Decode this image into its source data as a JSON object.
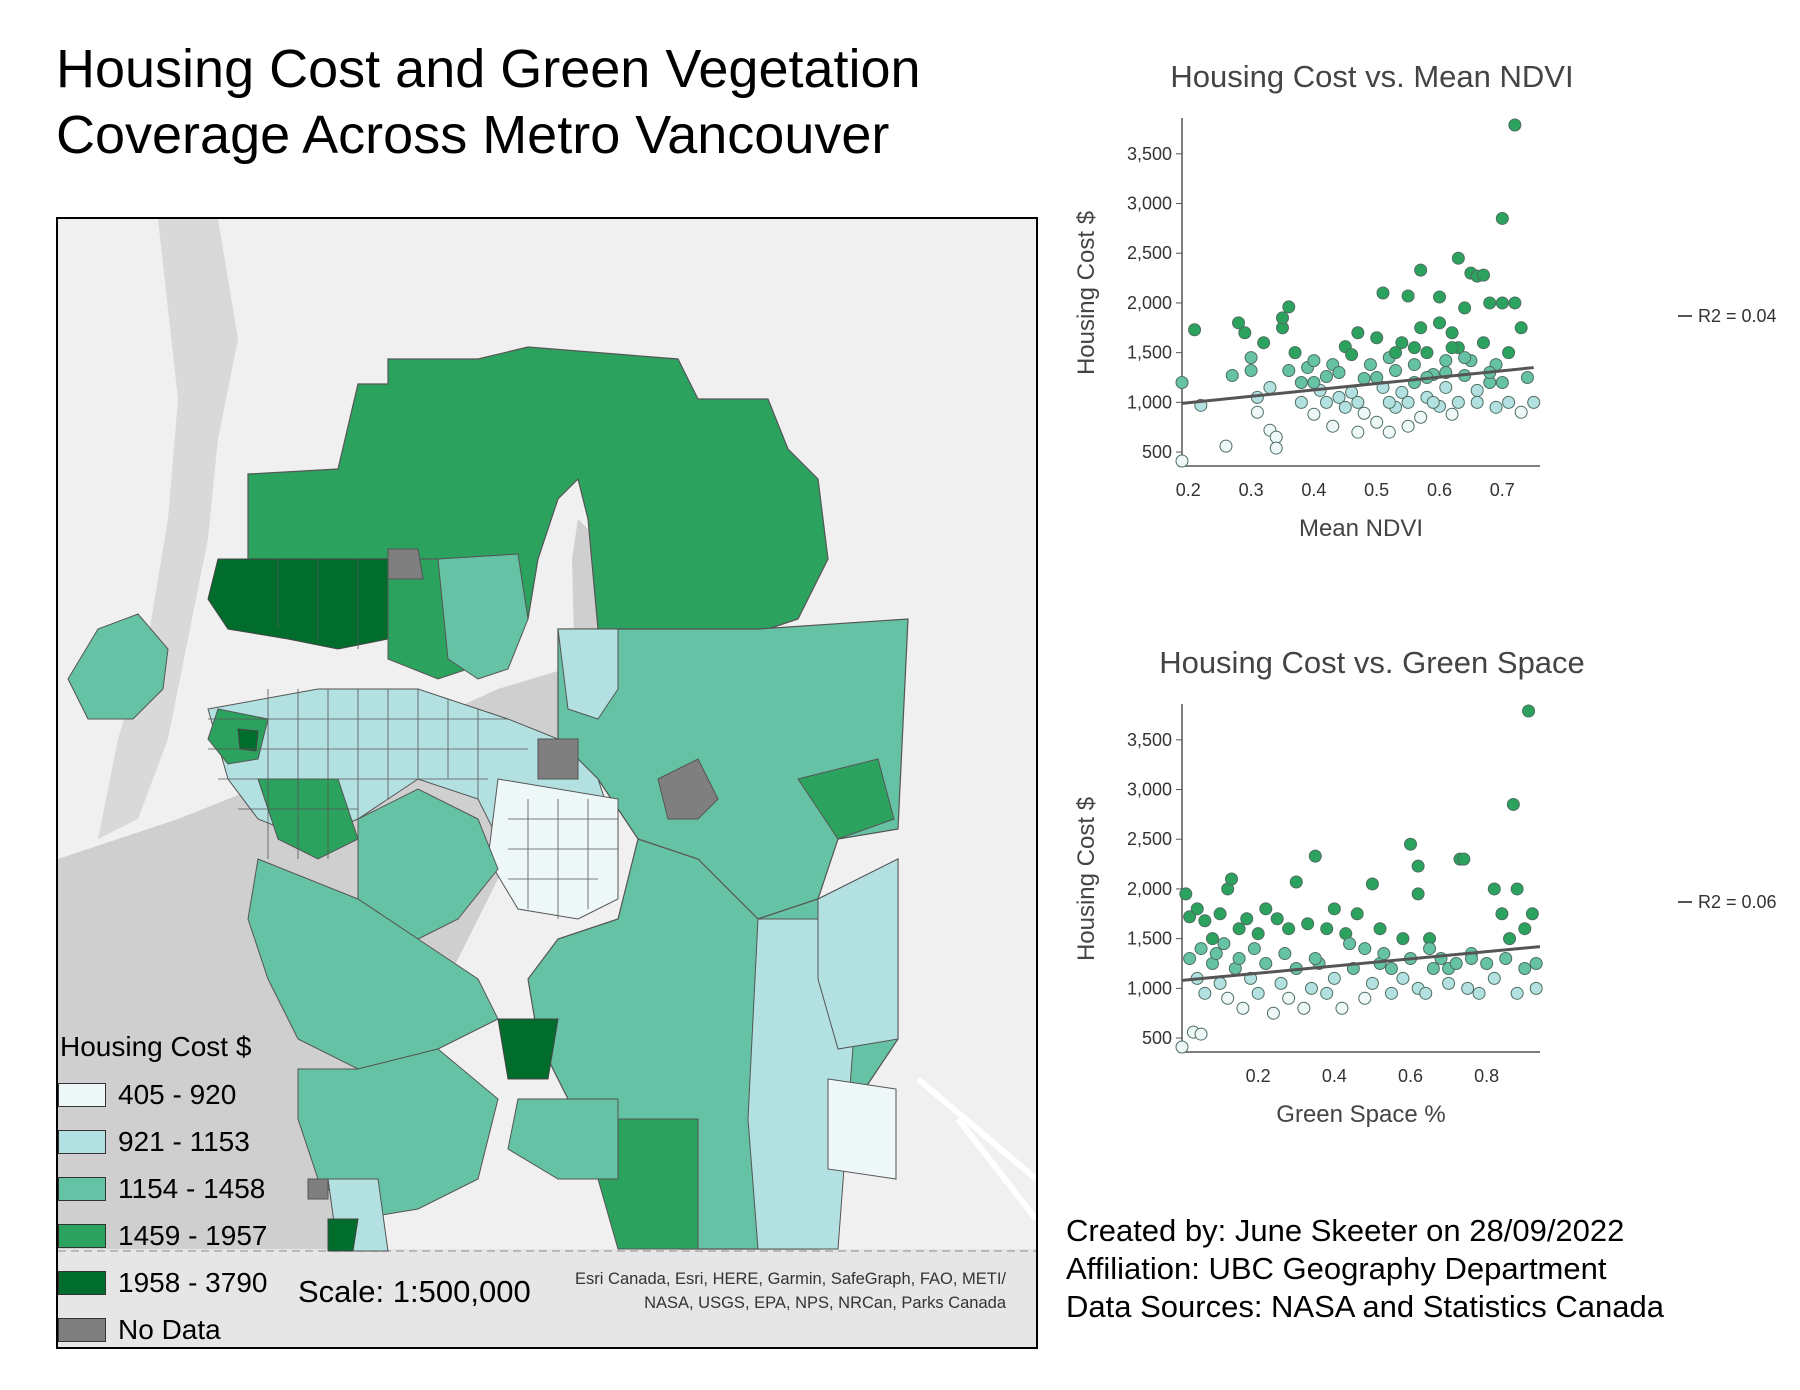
{
  "page": {
    "title_line1": "Housing Cost and Green Vegetation",
    "title_line2": "Coverage Across Metro Vancouver"
  },
  "map": {
    "legend_title": "Housing Cost $",
    "legend": [
      {
        "label": "405 - 920",
        "color": "#eef8f8"
      },
      {
        "label": "921 - 1153",
        "color": "#b3e1e1"
      },
      {
        "label": "1154 - 1458",
        "color": "#66c2a4"
      },
      {
        "label": "1459 - 1957",
        "color": "#2ca25f"
      },
      {
        "label": "1958 - 3790",
        "color": "#006d2c"
      },
      {
        "label": "No Data",
        "color": "#7f7f7f"
      }
    ],
    "scale": "Scale: 1:500,000",
    "attribution_line1": "Esri Canada, Esri, HERE, Garmin, SafeGraph, FAO, METI/",
    "attribution_line2": "NASA, USGS, EPA, NPS, NRCan, Parks Canada"
  },
  "chart_data": [
    {
      "type": "scatter",
      "title": "Housing Cost vs. Mean NDVI",
      "xlabel": "Mean NDVI",
      "ylabel": "Housing Cost $",
      "xlim": [
        0.19,
        0.76
      ],
      "ylim": [
        400,
        3800
      ],
      "xticks": [
        0.2,
        0.3,
        0.4,
        0.5,
        0.6,
        0.7
      ],
      "xtick_labels": [
        "0.2",
        "0.3",
        "0.4",
        "0.5",
        "0.6",
        "0.7"
      ],
      "yticks": [
        500,
        1000,
        1500,
        2000,
        2500,
        3000,
        3500
      ],
      "ytick_labels": [
        "500",
        "1,000",
        "1,500",
        "2,000",
        "2,500",
        "3,000",
        "3,500"
      ],
      "trendline": {
        "x": [
          0.19,
          0.75
        ],
        "y": [
          990,
          1350
        ],
        "label": "R2 = 0.04"
      },
      "points": [
        [
          0.19,
          1200
        ],
        [
          0.21,
          1730
        ],
        [
          0.22,
          970
        ],
        [
          0.19,
          410
        ],
        [
          0.26,
          560
        ],
        [
          0.27,
          1270
        ],
        [
          0.28,
          1800
        ],
        [
          0.29,
          1700
        ],
        [
          0.3,
          1320
        ],
        [
          0.3,
          1450
        ],
        [
          0.31,
          1050
        ],
        [
          0.31,
          900
        ],
        [
          0.32,
          1600
        ],
        [
          0.33,
          1150
        ],
        [
          0.33,
          720
        ],
        [
          0.34,
          650
        ],
        [
          0.34,
          540
        ],
        [
          0.35,
          1750
        ],
        [
          0.36,
          1960
        ],
        [
          0.35,
          1850
        ],
        [
          0.36,
          1320
        ],
        [
          0.37,
          1500
        ],
        [
          0.38,
          1200
        ],
        [
          0.38,
          1000
        ],
        [
          0.39,
          1350
        ],
        [
          0.4,
          1420
        ],
        [
          0.4,
          880
        ],
        [
          0.41,
          1120
        ],
        [
          0.42,
          1260
        ],
        [
          0.43,
          1380
        ],
        [
          0.43,
          760
        ],
        [
          0.44,
          1050
        ],
        [
          0.45,
          1560
        ],
        [
          0.45,
          950
        ],
        [
          0.46,
          1480
        ],
        [
          0.47,
          1700
        ],
        [
          0.47,
          700
        ],
        [
          0.48,
          1240
        ],
        [
          0.48,
          890
        ],
        [
          0.49,
          1380
        ],
        [
          0.5,
          1650
        ],
        [
          0.5,
          800
        ],
        [
          0.51,
          1150
        ],
        [
          0.51,
          2100
        ],
        [
          0.52,
          1450
        ],
        [
          0.52,
          700
        ],
        [
          0.53,
          1320
        ],
        [
          0.53,
          950
        ],
        [
          0.54,
          1600
        ],
        [
          0.54,
          1100
        ],
        [
          0.55,
          2070
        ],
        [
          0.55,
          760
        ],
        [
          0.56,
          1380
        ],
        [
          0.56,
          1200
        ],
        [
          0.57,
          1750
        ],
        [
          0.57,
          850
        ],
        [
          0.57,
          2330
        ],
        [
          0.58,
          1050
        ],
        [
          0.58,
          1500
        ],
        [
          0.59,
          1280
        ],
        [
          0.6,
          1800
        ],
        [
          0.6,
          960
        ],
        [
          0.6,
          2060
        ],
        [
          0.61,
          1420
        ],
        [
          0.61,
          1150
        ],
        [
          0.62,
          1700
        ],
        [
          0.62,
          880
        ],
        [
          0.63,
          1550
        ],
        [
          0.63,
          1000
        ],
        [
          0.63,
          2450
        ],
        [
          0.64,
          1270
        ],
        [
          0.64,
          1950
        ],
        [
          0.65,
          1420
        ],
        [
          0.65,
          2300
        ],
        [
          0.66,
          2270
        ],
        [
          0.66,
          1120
        ],
        [
          0.67,
          1600
        ],
        [
          0.67,
          2280
        ],
        [
          0.68,
          2000
        ],
        [
          0.68,
          1200
        ],
        [
          0.69,
          1380
        ],
        [
          0.69,
          950
        ],
        [
          0.7,
          2850
        ],
        [
          0.7,
          2000
        ],
        [
          0.71,
          1500
        ],
        [
          0.71,
          1000
        ],
        [
          0.72,
          3790
        ],
        [
          0.72,
          2000
        ],
        [
          0.73,
          1750
        ],
        [
          0.73,
          900
        ],
        [
          0.74,
          1250
        ],
        [
          0.75,
          1000
        ],
        [
          0.42,
          1000
        ],
        [
          0.44,
          1300
        ],
        [
          0.46,
          1100
        ],
        [
          0.5,
          1250
        ],
        [
          0.52,
          1000
        ],
        [
          0.55,
          1000
        ],
        [
          0.58,
          1250
        ],
        [
          0.59,
          1000
        ],
        [
          0.61,
          1300
        ],
        [
          0.66,
          1000
        ],
        [
          0.68,
          1300
        ],
        [
          0.7,
          1200
        ],
        [
          0.4,
          1200
        ],
        [
          0.47,
          1000
        ],
        [
          0.53,
          1500
        ],
        [
          0.56,
          1550
        ],
        [
          0.62,
          1550
        ],
        [
          0.64,
          1450
        ]
      ]
    },
    {
      "type": "scatter",
      "title": "Housing Cost vs. Green Space",
      "xlabel": "Green Space %",
      "ylabel": "Housing Cost $",
      "xlim": [
        0.0,
        0.94
      ],
      "ylim": [
        400,
        3800
      ],
      "xticks": [
        0.2,
        0.4,
        0.6,
        0.8
      ],
      "xtick_labels": [
        "0.2",
        "0.4",
        "0.6",
        "0.8"
      ],
      "yticks": [
        500,
        1000,
        1500,
        2000,
        2500,
        3000,
        3500
      ],
      "ytick_labels": [
        "500",
        "1,000",
        "1,500",
        "2,000",
        "2,500",
        "3,000",
        "3,500"
      ],
      "trendline": {
        "x": [
          0.0,
          0.94
        ],
        "y": [
          1080,
          1420
        ],
        "label": "R2 = 0.06"
      },
      "points": [
        [
          0.0,
          410
        ],
        [
          0.03,
          560
        ],
        [
          0.05,
          540
        ],
        [
          0.01,
          1950
        ],
        [
          0.02,
          1720
        ],
        [
          0.04,
          1800
        ],
        [
          0.06,
          1680
        ],
        [
          0.08,
          1500
        ],
        [
          0.1,
          1750
        ],
        [
          0.12,
          2000
        ],
        [
          0.13,
          2100
        ],
        [
          0.15,
          1600
        ],
        [
          0.17,
          1700
        ],
        [
          0.2,
          1550
        ],
        [
          0.22,
          1800
        ],
        [
          0.25,
          1700
        ],
        [
          0.28,
          1600
        ],
        [
          0.3,
          2070
        ],
        [
          0.33,
          1650
        ],
        [
          0.35,
          2330
        ],
        [
          0.38,
          1600
        ],
        [
          0.4,
          1800
        ],
        [
          0.43,
          1550
        ],
        [
          0.46,
          1750
        ],
        [
          0.48,
          1400
        ],
        [
          0.5,
          2050
        ],
        [
          0.52,
          1600
        ],
        [
          0.55,
          1200
        ],
        [
          0.58,
          1500
        ],
        [
          0.6,
          2450
        ],
        [
          0.62,
          1950
        ],
        [
          0.62,
          2230
        ],
        [
          0.65,
          1500
        ],
        [
          0.68,
          1300
        ],
        [
          0.7,
          1200
        ],
        [
          0.73,
          2300
        ],
        [
          0.74,
          2300
        ],
        [
          0.76,
          1350
        ],
        [
          0.8,
          1250
        ],
        [
          0.82,
          2000
        ],
        [
          0.84,
          1750
        ],
        [
          0.86,
          1500
        ],
        [
          0.87,
          2850
        ],
        [
          0.88,
          2000
        ],
        [
          0.9,
          1600
        ],
        [
          0.91,
          3790
        ],
        [
          0.92,
          1750
        ],
        [
          0.93,
          1250
        ],
        [
          0.02,
          1300
        ],
        [
          0.04,
          1100
        ],
        [
          0.06,
          950
        ],
        [
          0.08,
          1250
        ],
        [
          0.1,
          1050
        ],
        [
          0.12,
          900
        ],
        [
          0.14,
          1200
        ],
        [
          0.16,
          800
        ],
        [
          0.18,
          1100
        ],
        [
          0.2,
          950
        ],
        [
          0.22,
          1250
        ],
        [
          0.24,
          750
        ],
        [
          0.26,
          1050
        ],
        [
          0.28,
          900
        ],
        [
          0.3,
          1200
        ],
        [
          0.32,
          800
        ],
        [
          0.34,
          1000
        ],
        [
          0.36,
          1250
        ],
        [
          0.38,
          950
        ],
        [
          0.4,
          1100
        ],
        [
          0.42,
          800
        ],
        [
          0.45,
          1200
        ],
        [
          0.48,
          900
        ],
        [
          0.5,
          1050
        ],
        [
          0.52,
          1250
        ],
        [
          0.55,
          950
        ],
        [
          0.58,
          1100
        ],
        [
          0.6,
          1300
        ],
        [
          0.62,
          1000
        ],
        [
          0.64,
          950
        ],
        [
          0.66,
          1200
        ],
        [
          0.7,
          1050
        ],
        [
          0.72,
          1250
        ],
        [
          0.75,
          1000
        ],
        [
          0.78,
          950
        ],
        [
          0.82,
          1100
        ],
        [
          0.85,
          1300
        ],
        [
          0.88,
          950
        ],
        [
          0.9,
          1200
        ],
        [
          0.93,
          1000
        ],
        [
          0.05,
          1400
        ],
        [
          0.09,
          1350
        ],
        [
          0.11,
          1450
        ],
        [
          0.15,
          1300
        ],
        [
          0.19,
          1400
        ],
        [
          0.27,
          1350
        ],
        [
          0.35,
          1300
        ],
        [
          0.44,
          1450
        ],
        [
          0.53,
          1350
        ],
        [
          0.65,
          1400
        ],
        [
          0.76,
          1300
        ]
      ]
    }
  ],
  "credits": {
    "created": "Created by: June Skeeter on 28/09/2022",
    "affiliation": "Affiliation:  UBC Geography Department",
    "sources": "Data Sources: NASA and Statistics Canada"
  }
}
